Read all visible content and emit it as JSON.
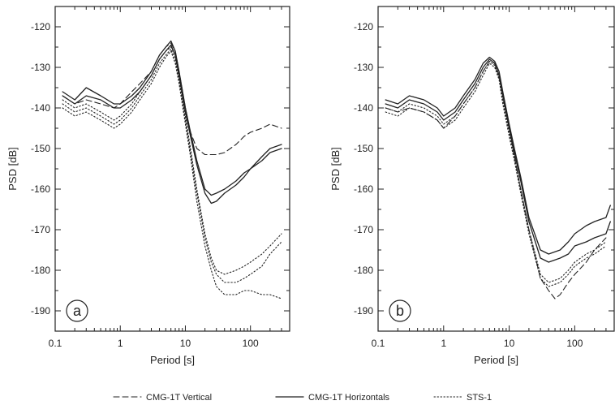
{
  "chart_data": [
    {
      "type": "line",
      "panel_label": "a",
      "xlabel": "Period [s]",
      "ylabel": "PSD [dB]",
      "xscale": "log",
      "xlim": [
        0.1,
        400
      ],
      "ylim": [
        -195,
        -115
      ],
      "xticks": [
        0.1,
        1,
        10,
        100
      ],
      "xtick_labels": [
        "0.1",
        "1",
        "10",
        "100"
      ],
      "yticks": [
        -120,
        -130,
        -140,
        -150,
        -160,
        -170,
        -180,
        -190
      ],
      "ytick_labels": [
        "-120",
        "-130",
        "-140",
        "-150",
        "-160",
        "-170",
        "-180",
        "-190"
      ],
      "series": [
        {
          "name": "CMG-1T Vertical",
          "style": "dashed",
          "x": [
            0.13,
            0.2,
            0.3,
            0.5,
            0.8,
            1.0,
            1.5,
            2,
            3,
            4,
            5,
            6,
            7,
            8,
            10,
            12,
            15,
            20,
            30,
            40,
            60,
            80,
            100,
            150,
            200,
            300
          ],
          "y": [
            -137,
            -139,
            -138,
            -139,
            -140,
            -139,
            -136,
            -134,
            -131,
            -127,
            -125,
            -124,
            -126,
            -131,
            -140,
            -146,
            -150,
            -151.5,
            -151.5,
            -151,
            -149,
            -147,
            -146,
            -145,
            -144,
            -145
          ]
        },
        {
          "name": "CMG-1T Horizontals",
          "style": "solid",
          "x": [
            0.13,
            0.2,
            0.3,
            0.5,
            0.8,
            1.0,
            1.5,
            2,
            3,
            4,
            5,
            6,
            7,
            8,
            10,
            12,
            15,
            20,
            25,
            30,
            40,
            60,
            80,
            100,
            150,
            200,
            300
          ],
          "y": [
            -136,
            -138,
            -135,
            -137,
            -139,
            -139,
            -137,
            -135,
            -131,
            -127,
            -125,
            -123.5,
            -126,
            -131,
            -140,
            -146,
            -153,
            -160,
            -161.5,
            -161,
            -160,
            -158,
            -156,
            -155,
            -153,
            -151,
            -150
          ]
        },
        {
          "name": "CMG-1T Horizontals",
          "style": "solid",
          "x": [
            0.13,
            0.2,
            0.3,
            0.5,
            0.8,
            1.0,
            1.5,
            2,
            3,
            4,
            5,
            6,
            7,
            8,
            10,
            12,
            15,
            20,
            25,
            30,
            40,
            60,
            80,
            100,
            150,
            200,
            300
          ],
          "y": [
            -137,
            -139,
            -137,
            -138,
            -140,
            -140,
            -138,
            -136,
            -132,
            -128,
            -126,
            -124.5,
            -127,
            -132,
            -141,
            -147,
            -154,
            -161,
            -163.5,
            -163,
            -161,
            -159,
            -157,
            -155,
            -152,
            -150,
            -149
          ]
        },
        {
          "name": "STS-1",
          "style": "dotted",
          "x": [
            0.13,
            0.2,
            0.3,
            0.5,
            0.8,
            1.0,
            1.5,
            2,
            3,
            4,
            5,
            6,
            7,
            8,
            10,
            12,
            15,
            20,
            25,
            30,
            40,
            60,
            80,
            100,
            150,
            200,
            300
          ],
          "y": [
            -138,
            -140,
            -139,
            -141,
            -143,
            -142,
            -139,
            -136,
            -132,
            -128,
            -126,
            -125,
            -127,
            -132,
            -142,
            -150,
            -160,
            -171,
            -177,
            -180,
            -181,
            -180,
            -179,
            -178,
            -176,
            -174,
            -171
          ]
        },
        {
          "name": "STS-1",
          "style": "dotted",
          "x": [
            0.13,
            0.2,
            0.3,
            0.5,
            0.8,
            1.0,
            1.5,
            2,
            3,
            4,
            5,
            6,
            7,
            8,
            10,
            12,
            15,
            20,
            25,
            30,
            40,
            60,
            80,
            100,
            150,
            200,
            300
          ],
          "y": [
            -139,
            -141,
            -140,
            -142,
            -144,
            -143,
            -140,
            -137,
            -133,
            -129,
            -127,
            -125.5,
            -128,
            -133,
            -143,
            -151,
            -161,
            -172,
            -178,
            -181,
            -183,
            -183,
            -182,
            -181,
            -179,
            -176,
            -173
          ]
        },
        {
          "name": "STS-1",
          "style": "dotted",
          "x": [
            0.13,
            0.2,
            0.3,
            0.5,
            0.8,
            1.0,
            1.5,
            2,
            3,
            4,
            5,
            6,
            7,
            8,
            10,
            12,
            15,
            20,
            25,
            30,
            40,
            60,
            80,
            100,
            150,
            200,
            300
          ],
          "y": [
            -140,
            -142,
            -141,
            -143,
            -145,
            -144,
            -141,
            -138,
            -134,
            -130,
            -127.5,
            -126,
            -129,
            -134,
            -144,
            -152,
            -163,
            -174,
            -180,
            -184,
            -186,
            -186,
            -185,
            -185,
            -186,
            -186,
            -187
          ]
        }
      ]
    },
    {
      "type": "line",
      "panel_label": "b",
      "xlabel": "Period [s]",
      "ylabel": "PSD [dB]",
      "xscale": "log",
      "xlim": [
        0.1,
        400
      ],
      "ylim": [
        -195,
        -115
      ],
      "xticks": [
        0.1,
        1,
        10,
        100
      ],
      "xtick_labels": [
        "0.1",
        "1",
        "10",
        "100"
      ],
      "yticks": [
        -120,
        -130,
        -140,
        -150,
        -160,
        -170,
        -180,
        -190
      ],
      "ytick_labels": [
        "-120",
        "-130",
        "-140",
        "-150",
        "-160",
        "-170",
        "-180",
        "-190"
      ],
      "series": [
        {
          "name": "CMG-1T Vertical",
          "style": "dashed",
          "x": [
            0.13,
            0.2,
            0.3,
            0.5,
            0.8,
            1.0,
            1.5,
            2,
            3,
            4,
            5,
            6,
            7,
            8,
            10,
            12,
            15,
            20,
            30,
            40,
            50,
            60,
            80,
            100,
            150,
            200,
            300
          ],
          "y": [
            -140,
            -141,
            -140,
            -141,
            -143,
            -145,
            -142,
            -139,
            -135,
            -131,
            -128.5,
            -129,
            -132,
            -137,
            -145,
            -152,
            -160,
            -170,
            -182,
            -185,
            -187,
            -186,
            -183,
            -181,
            -178,
            -175,
            -172
          ]
        },
        {
          "name": "CMG-1T Horizontals",
          "style": "solid",
          "x": [
            0.13,
            0.2,
            0.3,
            0.5,
            0.8,
            1.0,
            1.5,
            2,
            3,
            4,
            5,
            6,
            7,
            8,
            10,
            12,
            15,
            20,
            30,
            40,
            60,
            80,
            100,
            150,
            200,
            300,
            350
          ],
          "y": [
            -138,
            -139,
            -137,
            -138,
            -140,
            -142,
            -140,
            -137,
            -133,
            -129,
            -127.5,
            -128.5,
            -131,
            -136,
            -144,
            -150,
            -157,
            -167,
            -175,
            -176,
            -175,
            -173,
            -171,
            -169,
            -168,
            -167,
            -164
          ]
        },
        {
          "name": "CMG-1T Horizontals",
          "style": "solid",
          "x": [
            0.13,
            0.2,
            0.3,
            0.5,
            0.8,
            1.0,
            1.5,
            2,
            3,
            4,
            5,
            6,
            7,
            8,
            10,
            12,
            15,
            20,
            30,
            40,
            60,
            80,
            100,
            150,
            200,
            300,
            350
          ],
          "y": [
            -139,
            -140,
            -138,
            -139,
            -141,
            -143,
            -141,
            -138,
            -134,
            -130,
            -128,
            -129,
            -132,
            -137,
            -145,
            -151,
            -158,
            -168,
            -177,
            -178,
            -177,
            -176,
            -174,
            -173,
            -172,
            -171,
            -168
          ]
        },
        {
          "name": "STS-1",
          "style": "dotted",
          "x": [
            0.13,
            0.2,
            0.3,
            0.5,
            0.8,
            1.0,
            1.5,
            2,
            3,
            4,
            5,
            6,
            7,
            8,
            10,
            12,
            15,
            20,
            30,
            40,
            60,
            80,
            100,
            150,
            200,
            300
          ],
          "y": [
            -140,
            -141,
            -139,
            -140,
            -142,
            -144,
            -142,
            -139,
            -135,
            -131,
            -128.5,
            -129.5,
            -132.5,
            -138,
            -146,
            -152,
            -160,
            -170,
            -181,
            -183,
            -182,
            -180,
            -178,
            -176,
            -175,
            -173
          ]
        },
        {
          "name": "STS-1",
          "style": "dotted",
          "x": [
            0.13,
            0.2,
            0.3,
            0.5,
            0.8,
            1.0,
            1.5,
            2,
            3,
            4,
            5,
            6,
            7,
            8,
            10,
            12,
            15,
            20,
            30,
            40,
            60,
            80,
            100,
            150,
            200,
            300
          ],
          "y": [
            -141,
            -142,
            -140,
            -141,
            -143,
            -145,
            -143,
            -140,
            -136,
            -132,
            -129,
            -130,
            -133,
            -139,
            -147,
            -153,
            -161,
            -171,
            -182,
            -184,
            -183,
            -181,
            -179,
            -177,
            -176,
            -174
          ]
        }
      ]
    }
  ],
  "legend": [
    {
      "label": "CMG-1T Vertical",
      "style": "dashed"
    },
    {
      "label": "CMG-1T Horizontals",
      "style": "solid"
    },
    {
      "label": "STS-1",
      "style": "dotted"
    }
  ]
}
